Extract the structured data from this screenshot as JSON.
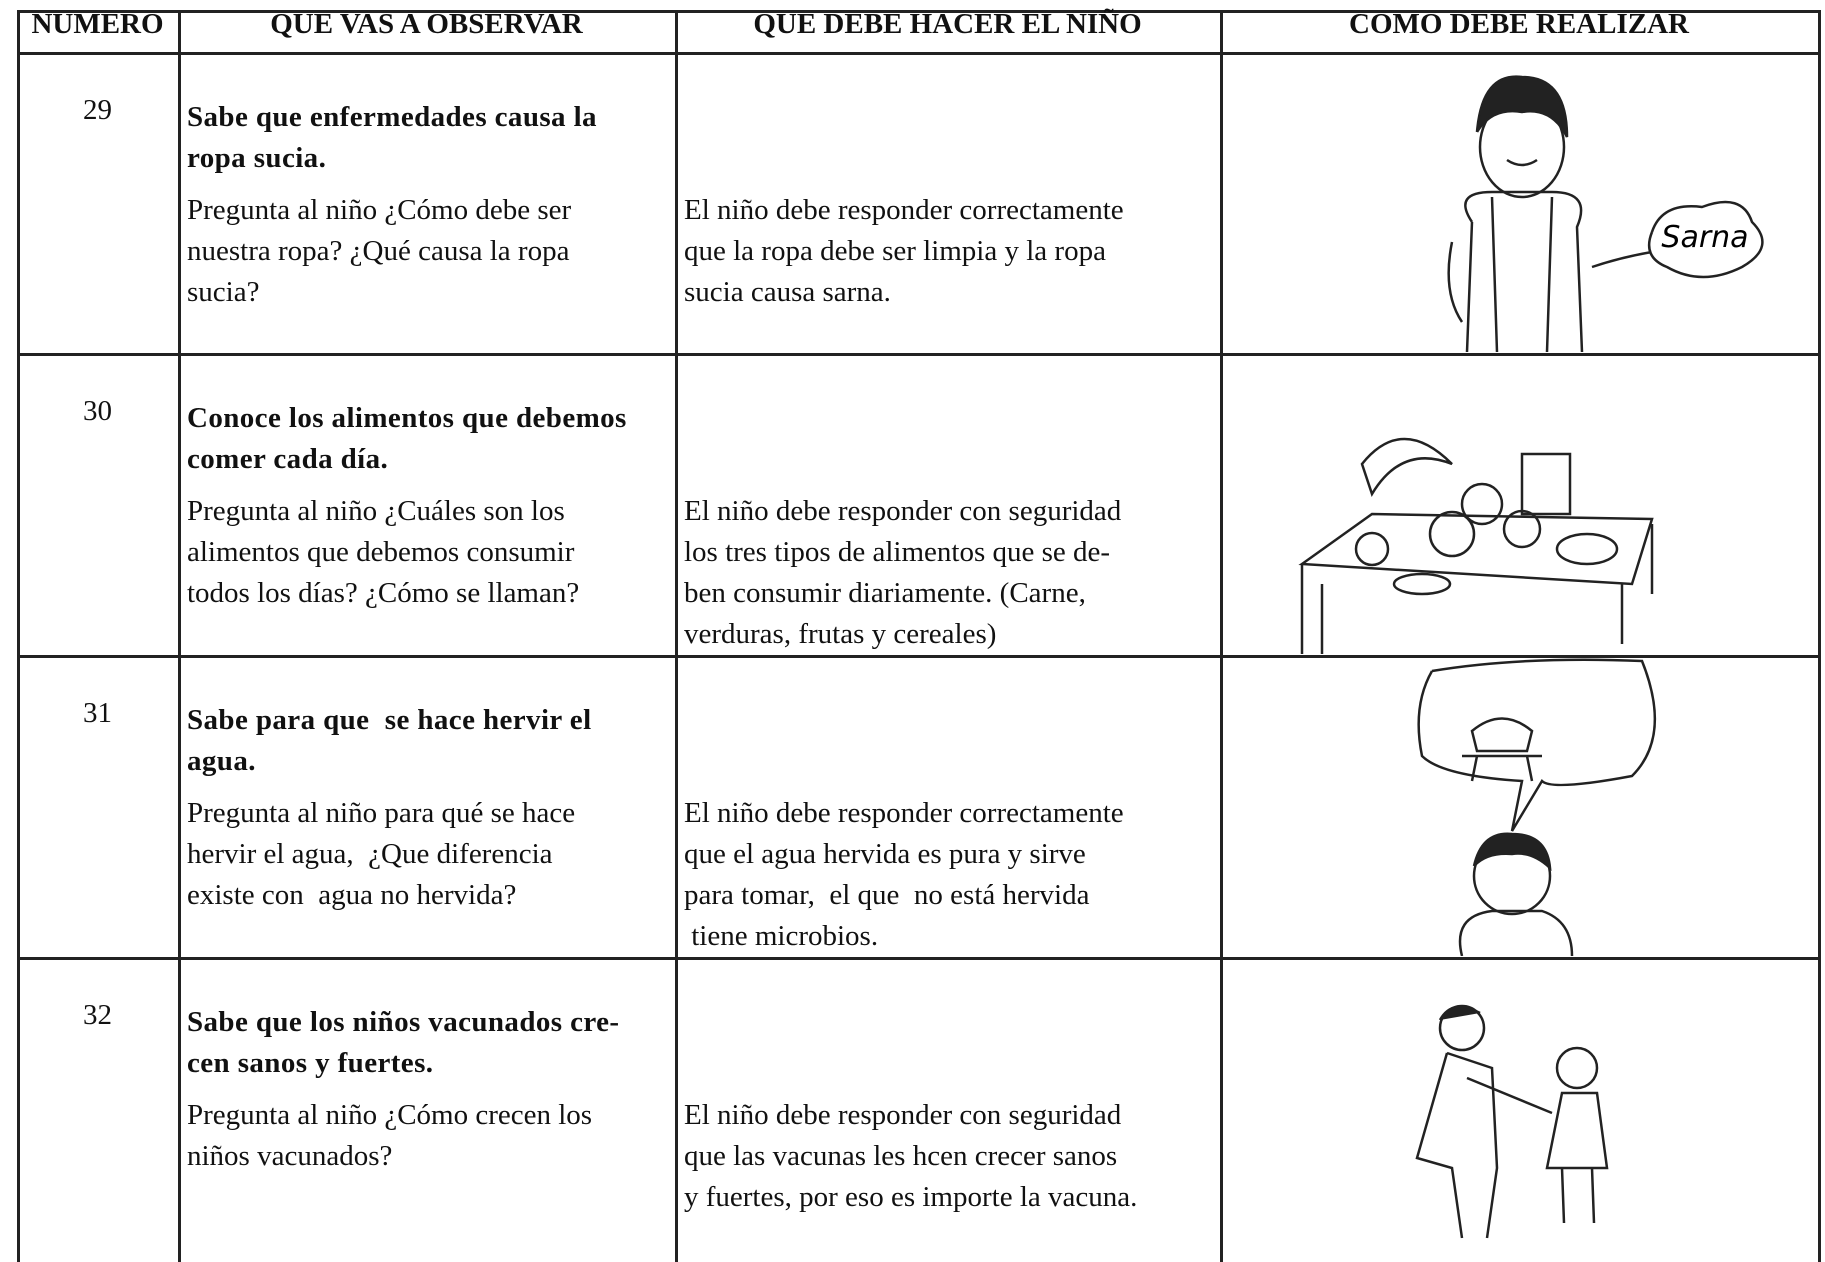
{
  "table": {
    "headers": [
      "NUMERO",
      "QUE VAS A OBSERVAR",
      "QUE DEBE HACER EL NIÑO",
      "COMO DEBE REALIZAR"
    ],
    "rows": [
      {
        "number": "29",
        "title": [
          "Sabe que enfermedades causa la",
          "ropa sucia."
        ],
        "question": [
          "Pregunta al niño ¿Cómo debe ser",
          "nuestra ropa? ¿Qué causa la ropa",
          "sucia?"
        ],
        "answer": [
          "El niño debe responder correctamente",
          "que la ropa debe ser limpia y la ropa",
          "sucia causa sarna."
        ],
        "image_text": "Sarna"
      },
      {
        "number": "30",
        "title": [
          "Conoce los alimentos que debemos",
          "comer cada día."
        ],
        "question": [
          "Pregunta al niño ¿Cuáles son los",
          "alimentos que debemos consumir",
          "todos los días? ¿Cómo se llaman?"
        ],
        "answer": [
          "El niño debe responder con seguridad",
          "los tres tipos de alimentos que se de-",
          "ben consumir diariamente. (Carne,",
          "verduras, frutas y cereales)"
        ]
      },
      {
        "number": "31",
        "title": [
          "Sabe para que  se hace hervir el",
          "agua."
        ],
        "question": [
          "Pregunta al niño para qué se hace",
          "hervir el agua,  ¿Que diferencia",
          "existe con  agua no hervida?"
        ],
        "answer": [
          "El niño debe responder correctamente",
          "que el agua hervida es pura y sirve",
          "para tomar,  el que  no está hervida",
          " tiene microbios."
        ]
      },
      {
        "number": "32",
        "title": [
          "Sabe que los niños vacunados cre-",
          "cen sanos y fuertes."
        ],
        "question": [
          "Pregunta al niño ¿Cómo crecen los",
          "niños vacunados?"
        ],
        "answer": [
          "El niño debe responder con seguridad",
          "que las vacunas les hcen crecer sanos",
          "y fuertes, por eso es importe la vacuna."
        ]
      }
    ]
  }
}
